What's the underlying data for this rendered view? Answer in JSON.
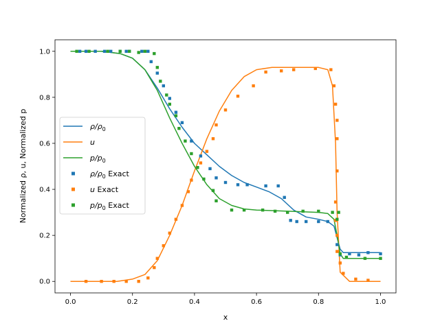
{
  "chart_data": {
    "type": "line",
    "xlabel": "x",
    "ylabel": "Normalized ρ, u, Normalized p",
    "xlim": [
      -0.05,
      1.05
    ],
    "ylim": [
      -0.05,
      1.05
    ],
    "xticks": [
      0.0,
      0.2,
      0.4,
      0.6,
      0.8,
      1.0
    ],
    "yticks": [
      0.0,
      0.2,
      0.4,
      0.6,
      0.8,
      1.0
    ],
    "xtick_labels": [
      "0.0",
      "0.2",
      "0.4",
      "0.6",
      "0.8",
      "1.0"
    ],
    "ytick_labels": [
      "0.0",
      "0.2",
      "0.4",
      "0.6",
      "0.8",
      "1.0"
    ],
    "grid": false,
    "legend_position": "center-left",
    "series": [
      {
        "name": "ρ/ρ0",
        "legend_base": "ρ/ρ",
        "legend_sub": "0",
        "legend_suffix": "",
        "kind": "line",
        "color": "#1f77b4",
        "x": [
          0.0,
          0.1,
          0.16,
          0.2,
          0.24,
          0.28,
          0.32,
          0.36,
          0.4,
          0.44,
          0.48,
          0.52,
          0.56,
          0.6,
          0.64,
          0.68,
          0.72,
          0.76,
          0.8,
          0.83,
          0.85,
          0.86,
          0.87,
          0.88,
          0.9,
          0.95,
          1.0
        ],
        "y": [
          1.0,
          1.0,
          0.99,
          0.97,
          0.92,
          0.84,
          0.75,
          0.67,
          0.6,
          0.55,
          0.5,
          0.46,
          0.43,
          0.41,
          0.39,
          0.36,
          0.31,
          0.28,
          0.27,
          0.26,
          0.24,
          0.19,
          0.14,
          0.125,
          0.125,
          0.125,
          0.125
        ]
      },
      {
        "name": "u",
        "legend_base": "u",
        "legend_sub": "",
        "legend_suffix": "",
        "kind": "line",
        "color": "#ff7f0e",
        "x": [
          0.0,
          0.15,
          0.2,
          0.24,
          0.28,
          0.32,
          0.36,
          0.4,
          0.44,
          0.48,
          0.52,
          0.56,
          0.6,
          0.65,
          0.7,
          0.75,
          0.8,
          0.83,
          0.845,
          0.855,
          0.86,
          0.87,
          0.9,
          1.0
        ],
        "y": [
          0.0,
          0.0,
          0.01,
          0.03,
          0.09,
          0.2,
          0.33,
          0.48,
          0.62,
          0.74,
          0.83,
          0.89,
          0.92,
          0.93,
          0.93,
          0.93,
          0.93,
          0.92,
          0.85,
          0.6,
          0.3,
          0.04,
          0.0,
          0.0
        ]
      },
      {
        "name": "p/p0",
        "legend_base": "p/p",
        "legend_sub": "0",
        "legend_suffix": "",
        "kind": "line",
        "color": "#2ca02c",
        "x": [
          0.0,
          0.1,
          0.16,
          0.2,
          0.24,
          0.28,
          0.32,
          0.36,
          0.4,
          0.44,
          0.48,
          0.52,
          0.56,
          0.6,
          0.7,
          0.8,
          0.83,
          0.85,
          0.86,
          0.87,
          0.88,
          0.9,
          1.0
        ],
        "y": [
          1.0,
          1.0,
          0.99,
          0.97,
          0.92,
          0.83,
          0.71,
          0.6,
          0.5,
          0.42,
          0.36,
          0.33,
          0.315,
          0.31,
          0.305,
          0.3,
          0.295,
          0.27,
          0.2,
          0.12,
          0.1,
          0.1,
          0.1
        ]
      },
      {
        "name": "ρ/ρ0 Exact",
        "legend_base": "ρ/ρ",
        "legend_sub": "0",
        "legend_suffix": " Exact",
        "kind": "scatter",
        "color": "#1f77b4",
        "x": [
          0.03,
          0.05,
          0.08,
          0.11,
          0.13,
          0.16,
          0.18,
          0.19,
          0.23,
          0.25,
          0.26,
          0.28,
          0.3,
          0.32,
          0.34,
          0.36,
          0.39,
          0.42,
          0.45,
          0.47,
          0.5,
          0.54,
          0.57,
          0.63,
          0.67,
          0.69,
          0.71,
          0.73,
          0.76,
          0.8,
          0.83,
          0.86,
          0.87,
          0.9,
          0.93,
          0.96,
          1.0
        ],
        "y": [
          1.0,
          1.0,
          1.0,
          1.0,
          1.0,
          1.0,
          1.0,
          1.0,
          1.0,
          1.0,
          0.955,
          0.905,
          0.85,
          0.795,
          0.735,
          0.69,
          0.61,
          0.545,
          0.49,
          0.45,
          0.43,
          0.42,
          0.42,
          0.415,
          0.415,
          0.365,
          0.265,
          0.26,
          0.26,
          0.26,
          0.26,
          0.16,
          0.115,
          0.12,
          0.115,
          0.125,
          0.12
        ]
      },
      {
        "name": "u Exact",
        "legend_base": "u",
        "legend_sub": "",
        "legend_suffix": " Exact",
        "kind": "scatter",
        "color": "#ff7f0e",
        "x": [
          0.05,
          0.1,
          0.14,
          0.18,
          0.22,
          0.25,
          0.27,
          0.28,
          0.3,
          0.32,
          0.34,
          0.36,
          0.38,
          0.39,
          0.42,
          0.44,
          0.46,
          0.47,
          0.5,
          0.54,
          0.59,
          0.63,
          0.68,
          0.72,
          0.79,
          0.84,
          0.85,
          0.855,
          0.86,
          0.86,
          0.86,
          0.855,
          0.855,
          0.86,
          0.86,
          0.87,
          0.88,
          0.92,
          0.96
        ],
        "y": [
          0.0,
          0.0,
          0.0,
          0.0,
          0.0,
          0.015,
          0.06,
          0.1,
          0.155,
          0.21,
          0.27,
          0.33,
          0.39,
          0.44,
          0.515,
          0.565,
          0.62,
          0.68,
          0.745,
          0.805,
          0.85,
          0.91,
          0.915,
          0.92,
          0.925,
          0.92,
          0.85,
          0.77,
          0.7,
          0.62,
          0.48,
          0.345,
          0.265,
          0.2,
          0.13,
          0.08,
          0.035,
          0.01,
          0.005
        ]
      },
      {
        "name": "p/p0 Exact",
        "legend_base": "p/p",
        "legend_sub": "0",
        "legend_suffix": " Exact",
        "kind": "scatter",
        "color": "#2ca02c",
        "x": [
          0.02,
          0.06,
          0.12,
          0.16,
          0.19,
          0.22,
          0.24,
          0.27,
          0.28,
          0.29,
          0.31,
          0.32,
          0.34,
          0.35,
          0.37,
          0.39,
          0.41,
          0.43,
          0.46,
          0.47,
          0.52,
          0.56,
          0.62,
          0.66,
          0.7,
          0.75,
          0.8,
          0.845,
          0.86,
          0.865,
          0.87,
          0.89,
          0.95,
          1.0
        ],
        "y": [
          1.0,
          1.0,
          1.0,
          1.0,
          1.0,
          0.995,
          1.0,
          0.99,
          0.93,
          0.87,
          0.81,
          0.77,
          0.72,
          0.665,
          0.61,
          0.555,
          0.495,
          0.445,
          0.395,
          0.35,
          0.31,
          0.31,
          0.31,
          0.305,
          0.3,
          0.305,
          0.305,
          0.3,
          0.27,
          0.3,
          0.12,
          0.105,
          0.1,
          0.1
        ]
      }
    ]
  }
}
